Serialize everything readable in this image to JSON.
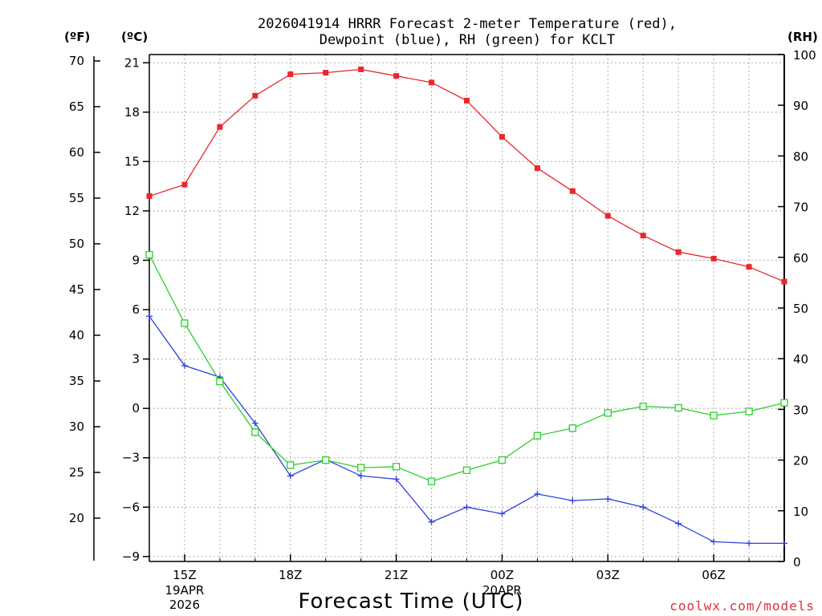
{
  "chart_data": {
    "type": "line",
    "title": [
      "2026041914 HRRR Forecast 2-meter Temperature (red),",
      "Dewpoint (blue), RH (green) for KCLT"
    ],
    "xlabel": "Forecast Time (UTC)",
    "unit_labels": {
      "fahrenheit": "(ºF)",
      "celsius": "(ºC)",
      "rh": "(RH)"
    },
    "x": [
      "14Z",
      "15Z",
      "16Z",
      "17Z",
      "18Z",
      "19Z",
      "20Z",
      "21Z",
      "22Z",
      "23Z",
      "00Z",
      "01Z",
      "02Z",
      "03Z",
      "04Z",
      "05Z",
      "06Z",
      "07Z",
      "08Z"
    ],
    "x_ticks": [
      {
        "index": 1,
        "label": "15Z",
        "sub": [
          "19APR",
          "2026"
        ]
      },
      {
        "index": 4,
        "label": "18Z",
        "sub": []
      },
      {
        "index": 7,
        "label": "21Z",
        "sub": []
      },
      {
        "index": 10,
        "label": "00Z",
        "sub": [
          "20APR"
        ]
      },
      {
        "index": 13,
        "label": "03Z",
        "sub": []
      },
      {
        "index": 16,
        "label": "06Z",
        "sub": []
      }
    ],
    "left_axis_c": {
      "ylim": [
        -9.3,
        21.5
      ],
      "ticks": [
        21,
        18,
        15,
        12,
        9,
        6,
        3,
        0,
        -3,
        -6,
        -9
      ]
    },
    "left_axis_f": {
      "ticks": [
        70,
        65,
        60,
        55,
        50,
        45,
        40,
        35,
        30,
        25,
        20
      ]
    },
    "right_axis_rh": {
      "ylim": [
        0,
        100
      ],
      "ticks": [
        100,
        90,
        80,
        70,
        60,
        50,
        40,
        30,
        20,
        10,
        0
      ]
    },
    "series": [
      {
        "name": "Temperature",
        "color": "#e8282d",
        "marker": "filled-square",
        "axis": "celsius",
        "values": [
          12.9,
          13.6,
          17.1,
          19.0,
          20.3,
          20.4,
          20.6,
          20.2,
          19.8,
          18.7,
          16.5,
          14.6,
          13.2,
          11.7,
          10.5,
          9.5,
          9.1,
          8.6,
          7.7
        ]
      },
      {
        "name": "Dewpoint",
        "color": "#2a40e0",
        "marker": "plus",
        "axis": "celsius",
        "values": [
          5.6,
          2.6,
          1.9,
          -0.9,
          -4.1,
          -3.1,
          -4.1,
          -4.3,
          -6.9,
          -6.0,
          -6.4,
          -5.2,
          -5.6,
          -5.5,
          -6.0,
          -7.0,
          -8.1,
          -8.2,
          -8.2
        ]
      },
      {
        "name": "RH",
        "color": "#2ad02a",
        "marker": "open-square",
        "axis": "rh",
        "values": [
          60.5,
          47.0,
          35.5,
          25.5,
          19.0,
          20.0,
          18.5,
          18.7,
          15.8,
          18.0,
          20.0,
          24.8,
          26.3,
          29.3,
          30.6,
          30.3,
          28.8,
          29.6,
          31.3
        ]
      }
    ],
    "grid": true
  },
  "credit": {
    "text": "coolwx.com/models",
    "color": "#e0303a"
  }
}
